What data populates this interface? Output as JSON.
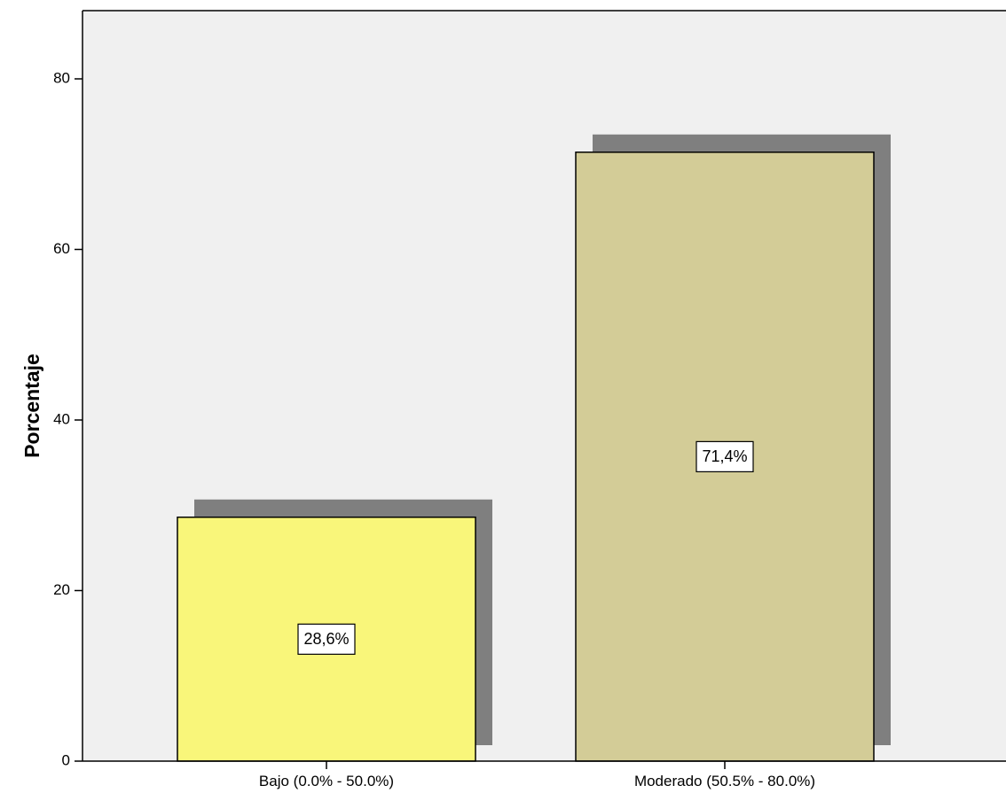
{
  "chart_data": {
    "type": "bar",
    "title": "",
    "xlabel": "",
    "ylabel": "Porcentaje",
    "ylim": [
      0,
      88
    ],
    "yticks": [
      0,
      20,
      40,
      60,
      80
    ],
    "grid": false,
    "categories": [
      "Bajo (0.0% - 50.0%)",
      "Moderado (50.5% - 80.0%)"
    ],
    "values": [
      28.6,
      71.4
    ],
    "data_labels": [
      "28,6%",
      "71,4%"
    ],
    "colors": [
      "#f9f67a",
      "#d3cc97"
    ],
    "shadow_color": "#7f7f7f",
    "plot_background": "#f0f0f0"
  }
}
